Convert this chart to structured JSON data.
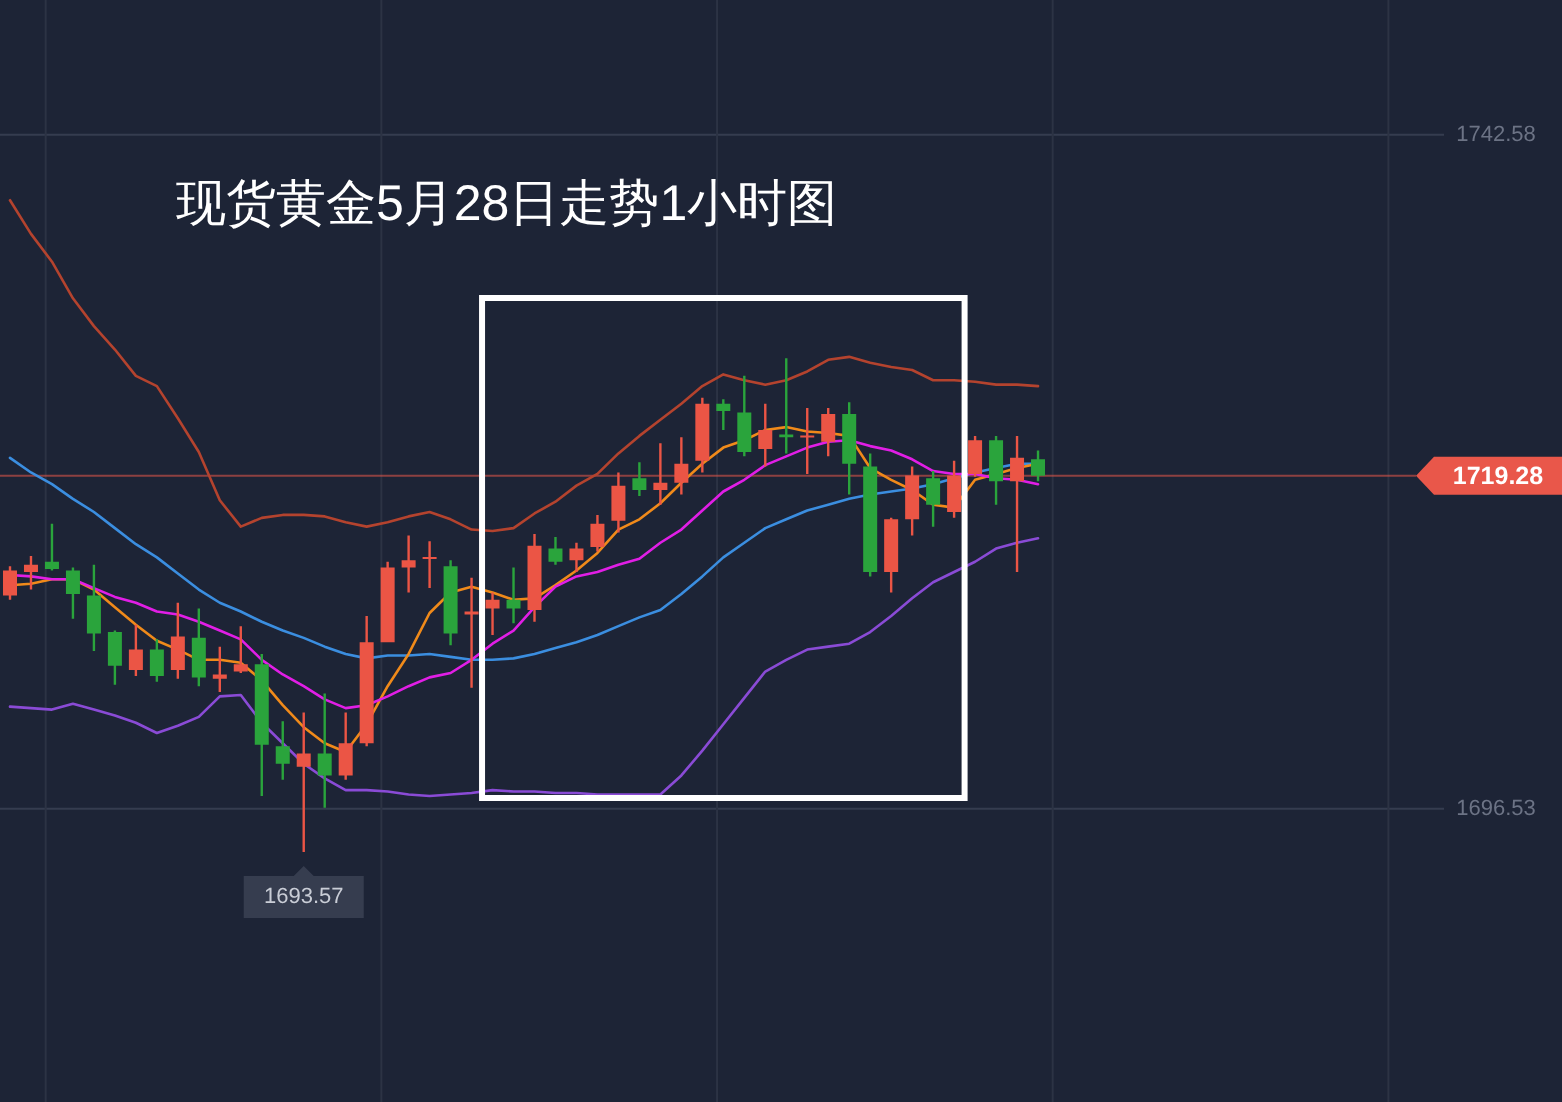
{
  "chart_data": {
    "type": "candlestick",
    "title": "现货黄金5月28日走势1小时图",
    "categories": [
      null,
      null,
      null,
      null,
      null,
      null,
      null,
      null,
      null,
      null,
      null,
      null,
      null,
      null,
      null,
      null,
      null,
      null,
      null,
      null,
      null,
      null,
      null,
      null,
      null,
      null,
      null,
      null,
      null,
      null,
      null,
      null,
      null,
      null,
      null,
      null,
      null,
      null,
      null,
      null,
      null,
      null,
      null,
      null,
      null,
      null,
      null,
      null,
      null,
      null
    ],
    "ohlc": [
      [
        1711.1,
        1713.1,
        1710.8,
        1712.8
      ],
      [
        1712.7,
        1713.8,
        1711.5,
        1713.2
      ],
      [
        1713.4,
        1716.0,
        1712.8,
        1712.9
      ],
      [
        1712.8,
        1713.0,
        1709.5,
        1711.2
      ],
      [
        1711.1,
        1713.2,
        1707.3,
        1708.5
      ],
      [
        1708.6,
        1708.7,
        1705.0,
        1706.3
      ],
      [
        1706.0,
        1709.1,
        1705.6,
        1707.4
      ],
      [
        1707.4,
        1708.1,
        1705.2,
        1705.6
      ],
      [
        1706.0,
        1710.6,
        1705.4,
        1708.3
      ],
      [
        1708.2,
        1710.2,
        1704.9,
        1705.5
      ],
      [
        1705.4,
        1707.6,
        1704.5,
        1705.7
      ],
      [
        1705.9,
        1709.0,
        1705.8,
        1706.4
      ],
      [
        1706.4,
        1707.1,
        1697.4,
        1700.9
      ],
      [
        1700.8,
        1702.5,
        1698.5,
        1699.6
      ],
      [
        1699.4,
        1703.1,
        1693.57,
        1700.3
      ],
      [
        1700.3,
        1704.4,
        1696.6,
        1698.8
      ],
      [
        1698.8,
        1703.1,
        1698.5,
        1701.0
      ],
      [
        1701.0,
        1709.7,
        1700.8,
        1707.9
      ],
      [
        1707.9,
        1713.4,
        1707.9,
        1713.0
      ],
      [
        1713.0,
        1715.2,
        1711.3,
        1713.5
      ],
      [
        1713.6,
        1714.8,
        1711.6,
        1713.7
      ],
      [
        1713.1,
        1713.5,
        1707.7,
        1708.5
      ],
      [
        1709.8,
        1712.3,
        1704.8,
        1710.0
      ],
      [
        1710.2,
        1711.3,
        1708.4,
        1710.8
      ],
      [
        1710.8,
        1713.0,
        1709.2,
        1710.2
      ],
      [
        1710.1,
        1715.3,
        1709.3,
        1714.5
      ],
      [
        1714.3,
        1715.1,
        1713.2,
        1713.4
      ],
      [
        1713.5,
        1714.7,
        1712.7,
        1714.3
      ],
      [
        1714.4,
        1716.6,
        1714.1,
        1716.0
      ],
      [
        1716.2,
        1719.5,
        1715.4,
        1718.6
      ],
      [
        1719.1,
        1720.2,
        1717.9,
        1718.3
      ],
      [
        1718.3,
        1721.5,
        1717.3,
        1718.8
      ],
      [
        1718.8,
        1721.9,
        1718.0,
        1720.1
      ],
      [
        1720.3,
        1724.6,
        1719.5,
        1724.2
      ],
      [
        1724.2,
        1724.5,
        1722.4,
        1723.7
      ],
      [
        1723.6,
        1726.1,
        1720.6,
        1720.9
      ],
      [
        1721.1,
        1724.2,
        1719.9,
        1722.4
      ],
      [
        1722.1,
        1727.3,
        1720.8,
        1721.9
      ],
      [
        1721.9,
        1723.9,
        1719.4,
        1722.0
      ],
      [
        1721.6,
        1723.9,
        1720.6,
        1723.5
      ],
      [
        1723.5,
        1724.3,
        1718.0,
        1720.1
      ],
      [
        1719.9,
        1720.8,
        1712.4,
        1712.7
      ],
      [
        1712.7,
        1716.4,
        1711.3,
        1716.3
      ],
      [
        1716.3,
        1719.9,
        1715.2,
        1719.3
      ],
      [
        1719.1,
        1719.6,
        1715.8,
        1717.3
      ],
      [
        1716.8,
        1720.3,
        1716.4,
        1719.3
      ],
      [
        1719.4,
        1722.0,
        1719.2,
        1721.7
      ],
      [
        1721.7,
        1722.0,
        1717.3,
        1718.9
      ],
      [
        1718.9,
        1722.0,
        1712.7,
        1720.5
      ],
      [
        1720.4,
        1721.0,
        1718.9,
        1719.28
      ]
    ],
    "colors": [
      "#eb5545",
      "#eb5545",
      "#2aa43c",
      "#2aa43c",
      "#2aa43c",
      "#2aa43c",
      "#eb5545",
      "#2aa43c",
      "#eb5545",
      "#2aa43c",
      "#eb5545",
      "#eb5545",
      "#2aa43c",
      "#2aa43c",
      "#eb5545",
      "#2aa43c",
      "#eb5545",
      "#eb5545",
      "#eb5545",
      "#eb5545",
      "#eb5545",
      "#2aa43c",
      "#eb5545",
      "#eb5545",
      "#2aa43c",
      "#eb5545",
      "#2aa43c",
      "#eb5545",
      "#eb5545",
      "#eb5545",
      "#2aa43c",
      "#eb5545",
      "#eb5545",
      "#eb5545",
      "#2aa43c",
      "#2aa43c",
      "#eb5545",
      "#2aa43c",
      "#eb5545",
      "#eb5545",
      "#2aa43c",
      "#2aa43c",
      "#eb5545",
      "#eb5545",
      "#2aa43c",
      "#eb5545",
      "#eb5545",
      "#2aa43c",
      "#eb5545",
      "#2aa43c"
    ],
    "series": [
      {
        "type": "line",
        "color": "#b4432e",
        "values": [
          1738.1,
          1735.8,
          1733.9,
          1731.4,
          1729.5,
          1727.9,
          1726.1,
          1725.4,
          1723.2,
          1720.9,
          1717.6,
          1715.8,
          1716.4,
          1716.6,
          1716.6,
          1716.5,
          1716.1,
          1715.8,
          1716.1,
          1716.5,
          1716.8,
          1716.3,
          1715.6,
          1715.5,
          1715.7,
          1716.7,
          1717.5,
          1718.6,
          1719.4,
          1720.8,
          1722.0,
          1723.1,
          1724.2,
          1725.4,
          1726.2,
          1725.8,
          1725.5,
          1725.8,
          1726.4,
          1727.2,
          1727.4,
          1727.0,
          1726.7,
          1726.5,
          1725.8,
          1725.8,
          1725.7,
          1725.5,
          1725.5,
          1725.4
        ]
      },
      {
        "type": "line",
        "color": "#3b8ee0",
        "values": [
          1720.5,
          1719.5,
          1718.7,
          1717.7,
          1716.8,
          1715.7,
          1714.6,
          1713.7,
          1712.6,
          1711.5,
          1710.6,
          1710.0,
          1709.3,
          1708.7,
          1708.2,
          1707.6,
          1707.1,
          1706.8,
          1707.0,
          1707.0,
          1707.1,
          1706.9,
          1706.7,
          1706.7,
          1706.8,
          1707.1,
          1707.5,
          1707.9,
          1708.4,
          1709.0,
          1709.6,
          1710.1,
          1711.2,
          1712.4,
          1713.7,
          1714.7,
          1715.7,
          1716.3,
          1716.9,
          1717.3,
          1717.7,
          1718.0,
          1718.2,
          1718.4,
          1718.7,
          1719.1,
          1719.5,
          1719.8,
          1720.1,
          1720.1
        ]
      },
      {
        "type": "line",
        "color": "#8a4bd6",
        "values": [
          1703.5,
          1703.4,
          1703.3,
          1703.7,
          1703.3,
          1702.9,
          1702.4,
          1701.7,
          1702.2,
          1702.8,
          1704.2,
          1704.3,
          1702.4,
          1701.0,
          1699.6,
          1698.6,
          1697.8,
          1697.8,
          1697.7,
          1697.5,
          1697.4,
          1697.5,
          1697.6,
          1697.8,
          1697.7,
          1697.7,
          1697.6,
          1697.6,
          1697.5,
          1697.5,
          1697.5,
          1697.5,
          1698.8,
          1700.5,
          1702.3,
          1704.1,
          1705.9,
          1706.7,
          1707.4,
          1707.6,
          1707.8,
          1708.6,
          1709.7,
          1710.9,
          1712.0,
          1712.7,
          1713.4,
          1714.3,
          1714.7,
          1715.0
        ]
      },
      {
        "type": "line",
        "color": "#f08a1a",
        "values": [
          1711.8,
          1711.9,
          1712.2,
          1712.2,
          1711.5,
          1710.3,
          1709.1,
          1708.0,
          1707.4,
          1706.7,
          1706.7,
          1706.5,
          1705.3,
          1703.6,
          1702.1,
          1701.0,
          1700.4,
          1702.3,
          1704.9,
          1707.1,
          1709.9,
          1711.3,
          1711.7,
          1711.3,
          1710.8,
          1710.9,
          1711.8,
          1712.8,
          1714.0,
          1715.6,
          1716.3,
          1717.4,
          1718.8,
          1720.1,
          1721.2,
          1721.7,
          1722.4,
          1722.6,
          1722.3,
          1722.2,
          1722.0,
          1719.8,
          1719.0,
          1718.3,
          1717.3,
          1717.1,
          1719.0,
          1719.4,
          1719.8,
          1720.1
        ]
      },
      {
        "type": "line",
        "color": "#e11ee6",
        "values": [
          1712.5,
          1712.4,
          1712.2,
          1712.2,
          1711.6,
          1711.0,
          1710.6,
          1710.0,
          1709.8,
          1709.3,
          1708.7,
          1708.1,
          1706.7,
          1705.7,
          1704.9,
          1704.0,
          1703.4,
          1703.6,
          1704.2,
          1704.9,
          1705.5,
          1705.8,
          1706.7,
          1707.8,
          1708.7,
          1710.3,
          1711.7,
          1712.4,
          1712.7,
          1713.2,
          1713.6,
          1714.7,
          1715.6,
          1716.9,
          1718.2,
          1719.0,
          1720.0,
          1720.6,
          1721.2,
          1721.6,
          1721.7,
          1721.3,
          1721.0,
          1720.4,
          1719.6,
          1719.4,
          1719.4,
          1719.1,
          1719.0,
          1718.7
        ]
      }
    ],
    "ylim": [
      1676.49,
      1751.78
    ],
    "yticks": [
      1696.53,
      1742.58
    ],
    "grid": true,
    "ref_lines": [
      {
        "axis": "y",
        "value": 1719.28,
        "label": "1719.28",
        "color": "#e9574a"
      }
    ],
    "annotations": [
      {
        "text": "1693.57",
        "y": 1693.57
      }
    ]
  }
}
